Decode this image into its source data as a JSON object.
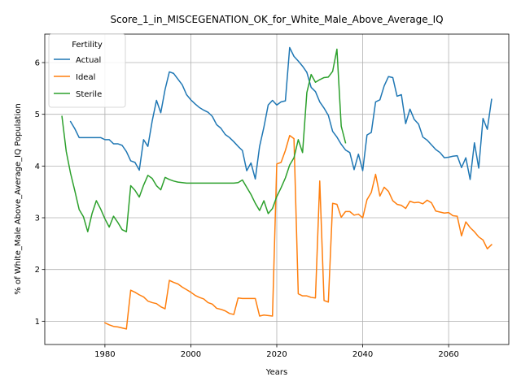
{
  "chart_data": {
    "type": "line",
    "title": "Score_1_in_MISCEGENATION_OK_for_White_Male_Above_Average_IQ",
    "xlabel": "Years",
    "ylabel": "% of White_Male Above_Average_IQ Population",
    "xlim": [
      1966,
      2074
    ],
    "ylim": [
      0.55,
      6.55
    ],
    "xticks": [
      1980,
      2000,
      2020,
      2040,
      2060
    ],
    "yticks": [
      1,
      2,
      3,
      4,
      5,
      6
    ],
    "grid": true,
    "legend": {
      "title": "Fertility",
      "placement": "top-left"
    },
    "colors": {
      "Actual": "#1f77b4",
      "Ideal": "#ff7f0e",
      "Sterile": "#2ca02c"
    },
    "series": [
      {
        "name": "Actual",
        "x": [
          1972,
          1973,
          1974,
          1975,
          1976,
          1977,
          1978,
          1979,
          1980,
          1981,
          1982,
          1983,
          1984,
          1985,
          1986,
          1987,
          1988,
          1989,
          1990,
          1991,
          1992,
          1993,
          1994,
          1995,
          1996,
          1997,
          1998,
          1999,
          2000,
          2001,
          2002,
          2003,
          2004,
          2005,
          2006,
          2007,
          2008,
          2009,
          2010,
          2011,
          2012,
          2013,
          2014,
          2015,
          2016,
          2017,
          2018,
          2019,
          2020,
          2021,
          2022,
          2023,
          2024,
          2025,
          2026,
          2027,
          2028,
          2029,
          2030,
          2031,
          2032,
          2033,
          2034,
          2035,
          2036,
          2037,
          2038,
          2039,
          2040,
          2041,
          2042,
          2043,
          2044,
          2045,
          2046,
          2047,
          2048,
          2049,
          2050,
          2051,
          2052,
          2053,
          2054,
          2055,
          2056,
          2057,
          2058,
          2059,
          2060,
          2061,
          2062,
          2063,
          2064,
          2065,
          2066,
          2067,
          2068,
          2069,
          2070
        ],
        "values": [
          4.86,
          4.72,
          4.55,
          4.55,
          4.55,
          4.55,
          4.55,
          4.55,
          4.51,
          4.51,
          4.43,
          4.43,
          4.4,
          4.28,
          4.1,
          4.07,
          3.92,
          4.51,
          4.38,
          4.87,
          5.27,
          5.03,
          5.48,
          5.82,
          5.79,
          5.68,
          5.57,
          5.38,
          5.28,
          5.2,
          5.13,
          5.08,
          5.04,
          4.96,
          4.8,
          4.73,
          4.61,
          4.55,
          4.47,
          4.38,
          4.3,
          3.91,
          4.06,
          3.75,
          4.38,
          4.75,
          5.18,
          5.27,
          5.18,
          5.24,
          5.26,
          6.29,
          6.12,
          6.03,
          5.93,
          5.81,
          5.52,
          5.44,
          5.24,
          5.12,
          4.98,
          4.67,
          4.56,
          4.42,
          4.31,
          4.26,
          3.93,
          4.23,
          3.91,
          4.6,
          4.65,
          5.24,
          5.28,
          5.55,
          5.73,
          5.71,
          5.35,
          5.38,
          4.82,
          5.1,
          4.9,
          4.81,
          4.56,
          4.5,
          4.41,
          4.32,
          4.26,
          4.16,
          4.17,
          4.19,
          4.2,
          3.97,
          4.16,
          3.74,
          4.45,
          3.96,
          4.92,
          4.71,
          5.29
        ]
      },
      {
        "name": "Ideal",
        "x": [
          1980,
          1981,
          1982,
          1983,
          1984,
          1985,
          1986,
          1987,
          1988,
          1989,
          1990,
          1991,
          1992,
          1993,
          1994,
          1995,
          1996,
          1997,
          1998,
          1999,
          2000,
          2001,
          2002,
          2003,
          2004,
          2005,
          2006,
          2007,
          2008,
          2009,
          2010,
          2011,
          2012,
          2013,
          2014,
          2015,
          2016,
          2017,
          2018,
          2019,
          2020,
          2021,
          2022,
          2023,
          2024,
          2025,
          2026,
          2027,
          2028,
          2029,
          2030,
          2031,
          2032,
          2033,
          2034,
          2035,
          2036,
          2037,
          2038,
          2039,
          2040,
          2041,
          2042,
          2043,
          2044,
          2045,
          2046,
          2047,
          2048,
          2049,
          2050,
          2051,
          2052,
          2053,
          2054,
          2055,
          2056,
          2057,
          2058,
          2059,
          2060,
          2061,
          2062,
          2063,
          2064,
          2065,
          2066,
          2067,
          2068,
          2069,
          2070
        ],
        "values": [
          0.97,
          0.93,
          0.9,
          0.89,
          0.87,
          0.85,
          1.6,
          1.56,
          1.51,
          1.47,
          1.39,
          1.36,
          1.34,
          1.28,
          1.24,
          1.79,
          1.75,
          1.72,
          1.66,
          1.61,
          1.56,
          1.5,
          1.46,
          1.43,
          1.36,
          1.33,
          1.25,
          1.23,
          1.2,
          1.15,
          1.13,
          1.45,
          1.44,
          1.44,
          1.44,
          1.44,
          1.1,
          1.12,
          1.11,
          1.1,
          4.04,
          4.07,
          4.3,
          4.59,
          4.53,
          1.53,
          1.49,
          1.49,
          1.46,
          1.45,
          3.71,
          1.4,
          1.37,
          3.28,
          3.26,
          3.01,
          3.12,
          3.12,
          3.05,
          3.07,
          3.0,
          3.35,
          3.49,
          3.84,
          3.42,
          3.59,
          3.51,
          3.33,
          3.26,
          3.24,
          3.18,
          3.32,
          3.29,
          3.3,
          3.27,
          3.34,
          3.29,
          3.13,
          3.11,
          3.09,
          3.1,
          3.04,
          3.03,
          2.65,
          2.92,
          2.81,
          2.73,
          2.63,
          2.57,
          2.4,
          2.48
        ]
      },
      {
        "name": "Sterile",
        "x": [
          1970,
          1971,
          1972,
          1973,
          1974,
          1975,
          1976,
          1977,
          1978,
          1979,
          1980,
          1981,
          1982,
          1983,
          1984,
          1985,
          1986,
          1987,
          1988,
          1989,
          1990,
          1991,
          1992,
          1993,
          1994,
          1995,
          1996,
          1997,
          1998,
          1999,
          2000,
          2001,
          2002,
          2003,
          2004,
          2005,
          2006,
          2007,
          2008,
          2009,
          2010,
          2011,
          2012,
          2013,
          2014,
          2015,
          2016,
          2017,
          2018,
          2019,
          2020,
          2021,
          2022,
          2023,
          2024,
          2025,
          2026,
          2027,
          2028,
          2029,
          2030,
          2031,
          2032,
          2033,
          2034,
          2035,
          2036
        ],
        "values": [
          4.96,
          4.28,
          3.86,
          3.52,
          3.16,
          3.02,
          2.73,
          3.08,
          3.33,
          3.17,
          2.98,
          2.82,
          3.03,
          2.91,
          2.77,
          2.73,
          3.62,
          3.53,
          3.4,
          3.63,
          3.82,
          3.76,
          3.62,
          3.54,
          3.78,
          3.74,
          3.71,
          3.69,
          3.68,
          3.67,
          3.67,
          3.67,
          3.67,
          3.67,
          3.67,
          3.67,
          3.67,
          3.67,
          3.67,
          3.67,
          3.67,
          3.68,
          3.73,
          3.59,
          3.45,
          3.28,
          3.14,
          3.33,
          3.08,
          3.18,
          3.41,
          3.58,
          3.77,
          4.02,
          4.16,
          4.51,
          4.26,
          5.42,
          5.77,
          5.62,
          5.67,
          5.71,
          5.72,
          5.83,
          6.26,
          4.77,
          4.45
        ]
      }
    ]
  }
}
